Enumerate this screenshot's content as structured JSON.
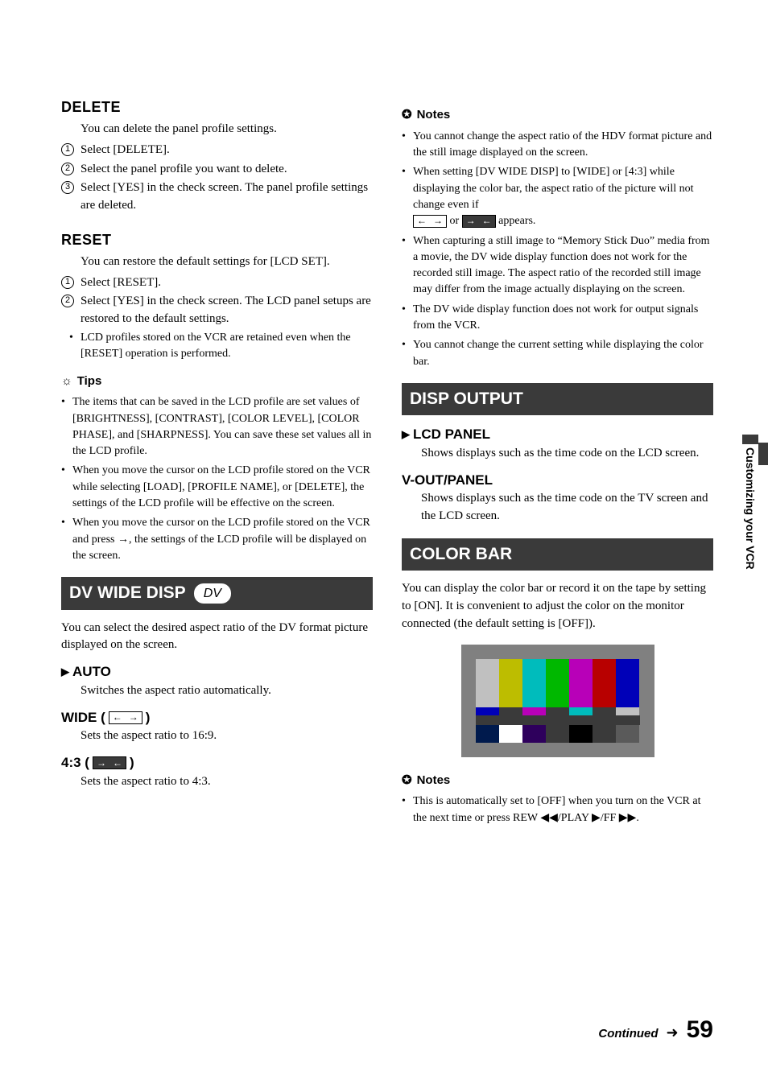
{
  "page": {
    "continued": "Continued",
    "number": "59",
    "side_tab": "Customizing your VCR"
  },
  "left": {
    "delete": {
      "title": "DELETE",
      "intro": "You can delete the panel profile settings.",
      "steps": [
        "Select [DELETE].",
        "Select the panel profile you want to delete.",
        "Select [YES] in the check screen. The panel profile settings are deleted."
      ]
    },
    "reset": {
      "title": "RESET",
      "intro": "You can restore the default settings for [LCD SET].",
      "steps": [
        "Select [RESET].",
        "Select [YES] in the check screen. The LCD panel setups are restored to the default settings."
      ],
      "note": "LCD profiles stored on the VCR are retained even when the [RESET] operation is performed."
    },
    "tips": {
      "label": "Tips",
      "items": [
        "The items that can be saved in the LCD profile are set values of [BRIGHTNESS], [CONTRAST], [COLOR LEVEL], [COLOR PHASE], and [SHARPNESS]. You can save these set values all in the LCD profile.",
        "When you move the cursor on the LCD profile stored on the VCR while selecting [LOAD], [PROFILE NAME], or [DELETE], the settings of the LCD profile will be effective on the screen.",
        "When you move the cursor on the LCD profile stored on the VCR and press →, the settings of the LCD profile will be displayed on the screen."
      ]
    },
    "dvwide": {
      "title": "DV WIDE DISP",
      "badge": "DV",
      "intro": "You can select the desired aspect ratio of the DV format picture displayed on the screen.",
      "auto": {
        "label": "AUTO",
        "desc": "Switches the aspect ratio automatically."
      },
      "wide": {
        "label": "WIDE (",
        "close": ")",
        "desc": "Sets the aspect ratio to 16:9."
      },
      "fourthree": {
        "label": "4:3 (",
        "close": ")",
        "desc": "Sets the aspect ratio to 4:3."
      }
    }
  },
  "right": {
    "notes1": {
      "label": "Notes",
      "items": [
        "You cannot change the aspect ratio of the HDV format picture and the still image displayed on the screen.",
        "When setting [DV WIDE DISP] to [WIDE] or [4:3] while displaying the color bar, the aspect ratio of the picture will not change even if",
        "When capturing a still image to “Memory Stick Duo” media from a movie, the DV wide display function does not work for the recorded still image. The aspect ratio of the recorded still image may differ from the image actually displaying on the screen.",
        "The DV wide display function does not work for output signals from the VCR.",
        "You cannot change the current setting while displaying the color bar."
      ],
      "appears": " appears."
    },
    "disp": {
      "title": "DISP OUTPUT",
      "lcd": {
        "label": "LCD PANEL",
        "desc": "Shows displays such as the time code on the LCD screen."
      },
      "vout": {
        "label": "V-OUT/PANEL",
        "desc": "Shows displays such as the time code on the TV screen and the LCD screen."
      }
    },
    "colorbar": {
      "title": "COLOR BAR",
      "intro": "You can display the color bar or record it on the tape by setting to [ON]. It is convenient to adjust the color on the monitor connected (the default setting is [OFF]).",
      "colors": {
        "top": [
          "#c0c0c0",
          "#bdbd00",
          "#00bcbc",
          "#00b800",
          "#b800b8",
          "#b80000",
          "#0000b8"
        ],
        "mid": [
          "#0000b8",
          "#3a3a3a",
          "#b800b8",
          "#3a3a3a",
          "#00bcbc",
          "#3a3a3a",
          "#c0c0c0"
        ],
        "low_bg": "#3a3a3a",
        "bot": [
          "#001a4d",
          "#ffffff",
          "#2e005c",
          "#3a3a3a",
          "#000000",
          "#3a3a3a",
          "#5a5a5a"
        ]
      }
    },
    "notes2": {
      "label": "Notes",
      "item": "This is automatically set to [OFF] when you turn on the VCR at the next time or press REW ◀◀/PLAY ▶/FF ▶▶."
    }
  }
}
